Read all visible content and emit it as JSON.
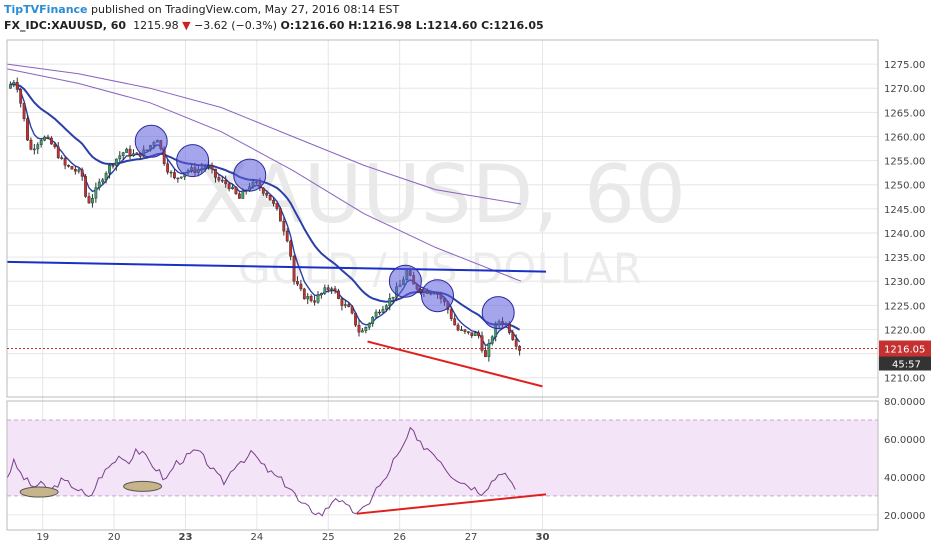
{
  "header": {
    "brand": "TipTVFinance",
    "published_text": "published on TradingView.com, May 27, 2016 08:14 EST",
    "symbol": "FX_IDC:XAUUSD, 60",
    "last_price": "1215.98",
    "change_arrow": "▼",
    "change": "−3.62 (−0.3%)",
    "ohlc": "O:1216.60 H:1216.98 L:1214.60 C:1216.05"
  },
  "watermark": {
    "line1": "XAUUSD, 60",
    "line2": "GOLD / US DOLLAR"
  },
  "price_tag": {
    "value": "1216.05",
    "countdown": "45:57"
  },
  "colors": {
    "bull": "#38a169",
    "bear": "#c53030",
    "wick": "#333333",
    "ma_fast": "#2b3fa8",
    "ma_mid": "#2b3fa8",
    "ma_slow": "#8a62c2",
    "resistance": "#1a2fc4",
    "support": "#e02020",
    "circle_fill": "#5b5bdb",
    "ellipse_fill": "#c8b48a",
    "rsi_line": "#7b3f8e",
    "rsi_band": "#f3e4f7",
    "grid": "#e6e6e6"
  },
  "chart_data": [
    {
      "type": "candlestick",
      "title": "FX_IDC:XAUUSD, 60",
      "ylim": [
        1206,
        1280
      ],
      "xlim": [
        18.5,
        30.7
      ],
      "y_ticks": [
        "1210.00",
        "1215.00",
        "1220.00",
        "1225.00",
        "1230.00",
        "1235.00",
        "1240.00",
        "1245.00",
        "1250.00",
        "1255.00",
        "1260.00",
        "1265.00",
        "1270.00",
        "1275.00"
      ],
      "x_ticks": [
        "19",
        "20",
        "23",
        "24",
        "25",
        "26",
        "27",
        "30"
      ],
      "x_tick_positions": [
        19,
        20,
        21,
        22,
        23,
        24,
        25,
        26
      ],
      "grid": true,
      "price_anchors": [
        [
          18.5,
          1270
        ],
        [
          18.62,
          1272
        ],
        [
          18.72,
          1265
        ],
        [
          18.82,
          1257
        ],
        [
          19.0,
          1260
        ],
        [
          19.15,
          1258
        ],
        [
          19.3,
          1254
        ],
        [
          19.45,
          1253
        ],
        [
          19.55,
          1252
        ],
        [
          19.62,
          1246
        ],
        [
          19.72,
          1248
        ],
        [
          19.85,
          1252
        ],
        [
          20.0,
          1255
        ],
        [
          20.15,
          1257
        ],
        [
          20.3,
          1256
        ],
        [
          20.45,
          1257
        ],
        [
          20.6,
          1260
        ],
        [
          20.72,
          1254
        ],
        [
          20.85,
          1251
        ],
        [
          21.0,
          1253
        ],
        [
          21.15,
          1253
        ],
        [
          21.3,
          1254
        ],
        [
          21.45,
          1251
        ],
        [
          21.6,
          1250
        ],
        [
          21.75,
          1247
        ],
        [
          21.9,
          1250
        ],
        [
          22.0,
          1250
        ],
        [
          22.15,
          1248
        ],
        [
          22.3,
          1244
        ],
        [
          22.45,
          1238
        ],
        [
          22.52,
          1230
        ],
        [
          22.65,
          1227
        ],
        [
          22.8,
          1226
        ],
        [
          22.95,
          1228
        ],
        [
          23.05,
          1229
        ],
        [
          23.15,
          1226
        ],
        [
          23.3,
          1224
        ],
        [
          23.45,
          1219
        ],
        [
          23.55,
          1221
        ],
        [
          23.7,
          1224
        ],
        [
          23.85,
          1226
        ],
        [
          24.0,
          1229
        ],
        [
          24.1,
          1232
        ],
        [
          24.2,
          1229
        ],
        [
          24.35,
          1228
        ],
        [
          24.5,
          1228
        ],
        [
          24.65,
          1225
        ],
        [
          24.8,
          1220
        ],
        [
          24.95,
          1219
        ],
        [
          25.1,
          1219
        ],
        [
          25.2,
          1214
        ],
        [
          25.3,
          1219
        ],
        [
          25.4,
          1222
        ],
        [
          25.5,
          1221
        ],
        [
          25.6,
          1218
        ],
        [
          25.68,
          1216
        ]
      ],
      "moving_averages": [
        {
          "name": "MA fast",
          "smoothing": 0.35
        },
        {
          "name": "MA mid",
          "smoothing": 0.085
        },
        {
          "name": "MA slow 1",
          "points": [
            [
              18.5,
              1275
            ],
            [
              19.5,
              1273
            ],
            [
              20.5,
              1270
            ],
            [
              21.5,
              1266
            ],
            [
              22.5,
              1260
            ],
            [
              23.5,
              1254
            ],
            [
              24.5,
              1249
            ],
            [
              25.7,
              1246
            ]
          ]
        },
        {
          "name": "MA slow 2",
          "points": [
            [
              18.5,
              1274
            ],
            [
              19.5,
              1271
            ],
            [
              20.5,
              1267
            ],
            [
              21.5,
              1261
            ],
            [
              22.5,
              1253
            ],
            [
              23.5,
              1244
            ],
            [
              24.5,
              1237
            ],
            [
              25.7,
              1230
            ]
          ]
        }
      ],
      "trendlines": [
        {
          "name": "resistance",
          "points": [
            [
              18.5,
              1234
            ],
            [
              26.05,
              1232
            ]
          ]
        },
        {
          "name": "support",
          "points": [
            [
              23.55,
              1217.5
            ],
            [
              26.0,
              1208.2
            ]
          ]
        }
      ],
      "circles": [
        [
          20.52,
          1259
        ],
        [
          21.1,
          1255
        ],
        [
          21.9,
          1252
        ],
        [
          24.08,
          1230
        ],
        [
          24.53,
          1227
        ],
        [
          25.38,
          1223.5
        ]
      ],
      "current_price": 1216.05
    },
    {
      "type": "line",
      "title": "RSI",
      "ylim": [
        12,
        80
      ],
      "y_ticks": [
        "20.0000",
        "40.0000",
        "60.0000",
        "80.0000"
      ],
      "overbought": 70,
      "oversold": 30,
      "rsi_anchors": [
        [
          18.5,
          40
        ],
        [
          18.6,
          48
        ],
        [
          18.7,
          41
        ],
        [
          18.85,
          35
        ],
        [
          19.0,
          36
        ],
        [
          19.1,
          32
        ],
        [
          19.25,
          38
        ],
        [
          19.4,
          36
        ],
        [
          19.55,
          32
        ],
        [
          19.65,
          28
        ],
        [
          19.8,
          40
        ],
        [
          20.0,
          48
        ],
        [
          20.1,
          52
        ],
        [
          20.2,
          47
        ],
        [
          20.3,
          55
        ],
        [
          20.45,
          50
        ],
        [
          20.6,
          44
        ],
        [
          20.72,
          38
        ],
        [
          20.85,
          47
        ],
        [
          21.0,
          50
        ],
        [
          21.15,
          54
        ],
        [
          21.3,
          48
        ],
        [
          21.45,
          40
        ],
        [
          21.55,
          37
        ],
        [
          21.7,
          47
        ],
        [
          21.85,
          50
        ],
        [
          21.95,
          53
        ],
        [
          22.05,
          47
        ],
        [
          22.2,
          42
        ],
        [
          22.35,
          38
        ],
        [
          22.5,
          33
        ],
        [
          22.6,
          26
        ],
        [
          22.75,
          23
        ],
        [
          22.9,
          20
        ],
        [
          23.0,
          24
        ],
        [
          23.1,
          30
        ],
        [
          23.25,
          24
        ],
        [
          23.35,
          22
        ],
        [
          23.45,
          21
        ],
        [
          23.55,
          25
        ],
        [
          23.65,
          33
        ],
        [
          23.8,
          38
        ],
        [
          23.9,
          48
        ],
        [
          24.0,
          52
        ],
        [
          24.1,
          60
        ],
        [
          24.15,
          66
        ],
        [
          24.25,
          58
        ],
        [
          24.4,
          55
        ],
        [
          24.55,
          50
        ],
        [
          24.7,
          42
        ],
        [
          24.85,
          38
        ],
        [
          25.0,
          35
        ],
        [
          25.15,
          32
        ],
        [
          25.3,
          38
        ],
        [
          25.45,
          44
        ],
        [
          25.55,
          36
        ],
        [
          25.62,
          34
        ]
      ],
      "support": [
        [
          23.4,
          20.6
        ],
        [
          26.05,
          30.8
        ]
      ],
      "ellipses": [
        [
          18.95,
          32
        ],
        [
          20.4,
          35
        ]
      ]
    }
  ]
}
